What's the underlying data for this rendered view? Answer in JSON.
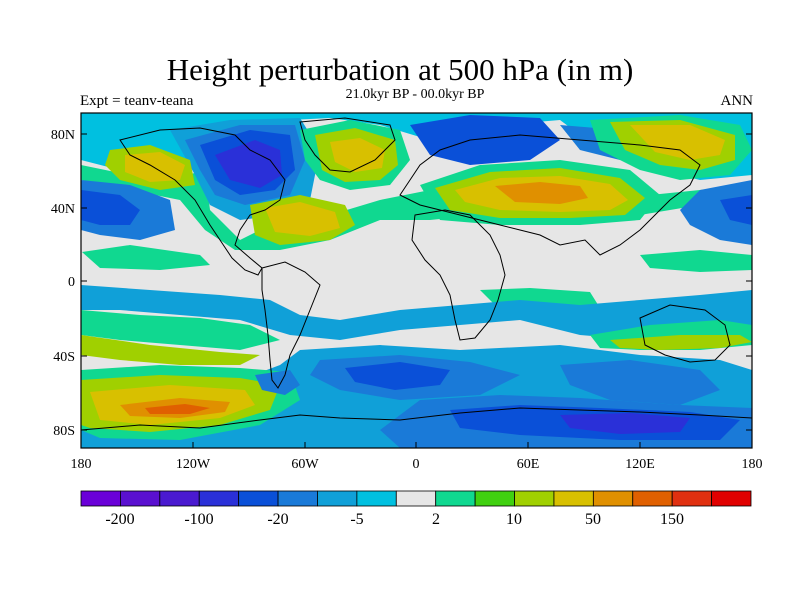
{
  "title": "Height perturbation at 500 hPa (in m)",
  "subtitle": "21.0kyr BP - 00.0kyr BP",
  "left_label": "Expt = teanv-teana",
  "right_label": "ANN",
  "map": {
    "projection": "cylindrical equidistant",
    "lon_range": [
      -180,
      180
    ],
    "lat_range": [
      -90,
      90
    ],
    "lon_tick_labels": [
      "180",
      "120W",
      "60W",
      "0",
      "60E",
      "120E",
      "180"
    ],
    "lat_tick_labels": [
      "80N",
      "40N",
      "0",
      "40S",
      "80S"
    ],
    "coastlines": true
  },
  "colorbar": {
    "colors": [
      "#6a00d8",
      "#5a10d0",
      "#4a1ad0",
      "#2a30d8",
      "#0a50d8",
      "#1a7ad8",
      "#10a0d8",
      "#00c0e0",
      "#e6e6e6",
      "#10d890",
      "#40d010",
      "#a0d000",
      "#d8c000",
      "#e09000",
      "#e06000",
      "#e03010",
      "#e00000"
    ],
    "tick_labels": [
      "-200",
      "-100",
      "-20",
      "-5",
      "2",
      "10",
      "50",
      "150"
    ]
  }
}
